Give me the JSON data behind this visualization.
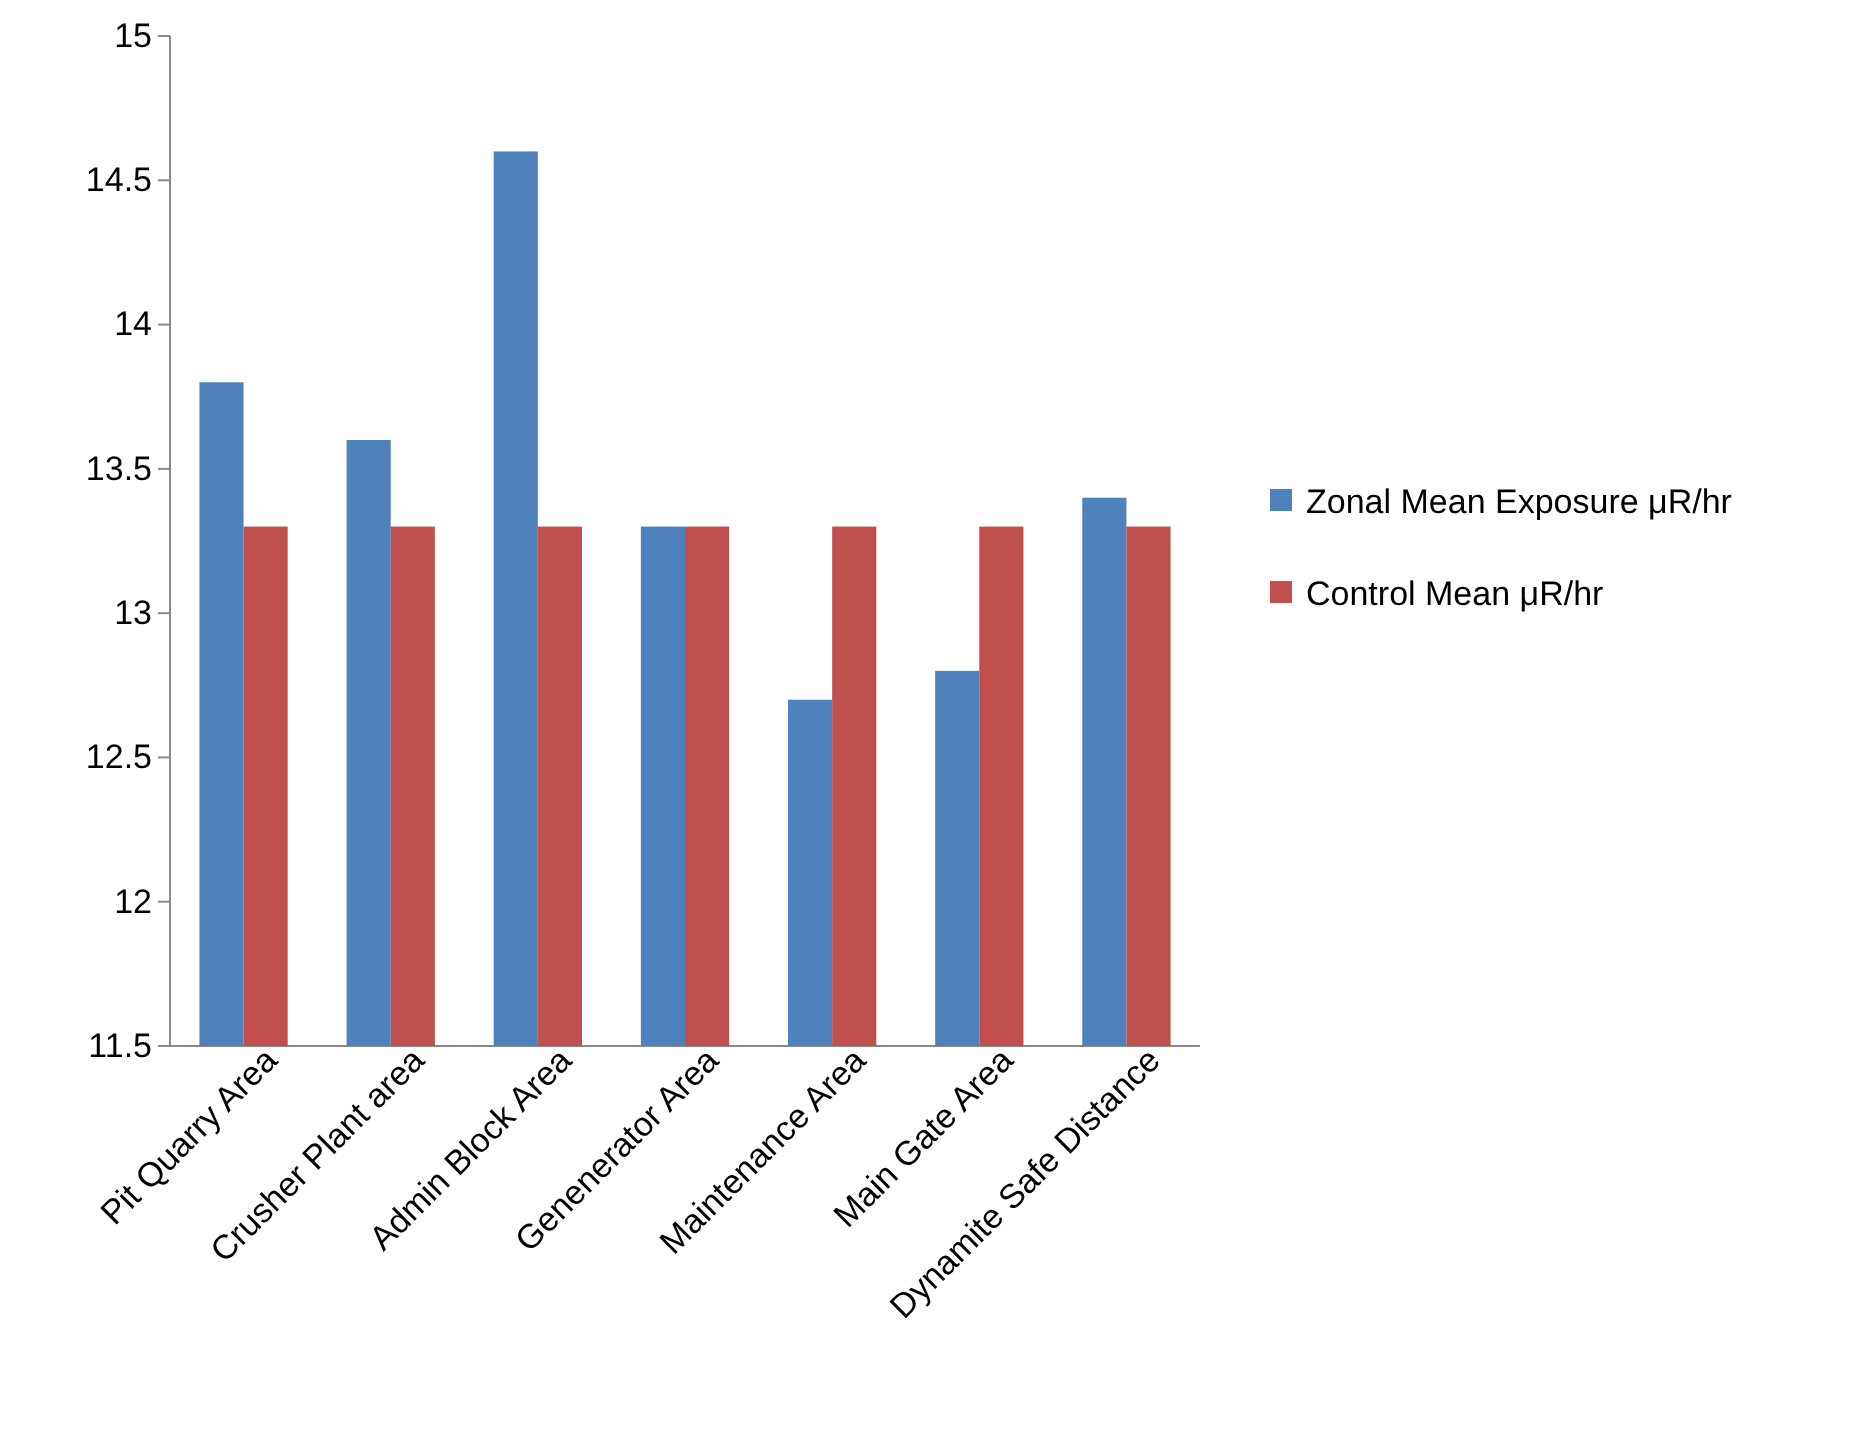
{
  "chart_data": {
    "type": "bar",
    "categories": [
      "Pit Quarry Area",
      "Crusher Plant area",
      "Admin Block Area",
      "Genenerator Area",
      "Maintenance Area",
      "Main Gate Area",
      "Dynamite Safe Distance"
    ],
    "series": [
      {
        "name": "Zonal Mean Exposure μR/hr",
        "color": "#4f81bd",
        "values": [
          13.8,
          13.6,
          14.6,
          13.3,
          12.7,
          12.8,
          13.4
        ]
      },
      {
        "name": "Control Mean μR/hr",
        "color": "#c0504d",
        "values": [
          13.3,
          13.3,
          13.3,
          13.3,
          13.3,
          13.3,
          13.3
        ]
      }
    ],
    "ylim": [
      11.5,
      15
    ],
    "yticks": [
      11.5,
      12,
      12.5,
      13,
      13.5,
      14,
      14.5,
      15
    ],
    "grid": false,
    "legend": "right"
  }
}
